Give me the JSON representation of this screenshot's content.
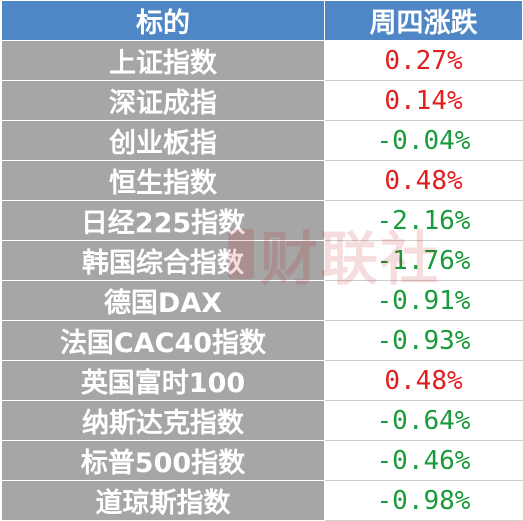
{
  "table": {
    "headers": [
      "标的",
      "周四涨跌"
    ],
    "rows": [
      {
        "name": "上证指数",
        "change": "0.27%",
        "direction": "up"
      },
      {
        "name": "深证成指",
        "change": "0.14%",
        "direction": "up"
      },
      {
        "name": "创业板指",
        "change": "-0.04%",
        "direction": "down"
      },
      {
        "name": "恒生指数",
        "change": "0.48%",
        "direction": "up"
      },
      {
        "name": "日经225指数",
        "change": "-2.16%",
        "direction": "down"
      },
      {
        "name": "韩国综合指数",
        "change": "-1.76%",
        "direction": "down"
      },
      {
        "name": "德国DAX",
        "change": "-0.91%",
        "direction": "down"
      },
      {
        "name": "法国CAC40指数",
        "change": "-0.93%",
        "direction": "down"
      },
      {
        "name": "英国富时100",
        "change": "0.48%",
        "direction": "up"
      },
      {
        "name": "纳斯达克指数",
        "change": "-0.64%",
        "direction": "down"
      },
      {
        "name": "标普500指数",
        "change": "-0.46%",
        "direction": "down"
      },
      {
        "name": "道琼斯指数",
        "change": "-0.98%",
        "direction": "down"
      }
    ]
  },
  "watermark": {
    "text": "财联社"
  },
  "colors": {
    "header_bg": "#4f86c5",
    "name_bg": "#a6a6a6",
    "up": "#e02020",
    "down": "#1a9a3a"
  }
}
